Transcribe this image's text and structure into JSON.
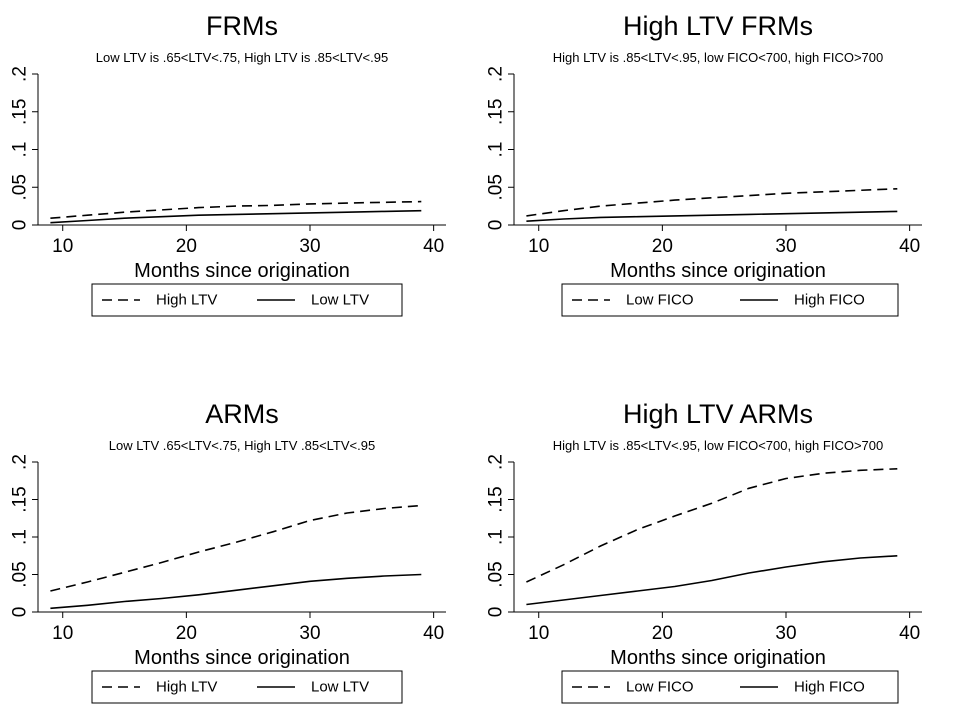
{
  "chart_data": [
    {
      "type": "line",
      "title": "FRMs",
      "subtitle": "Low LTV is .65<LTV<.75, High LTV is .85<LTV<.95",
      "xlabel": "Months since origination",
      "ylabel": "",
      "xlim": [
        8,
        41
      ],
      "ylim": [
        0,
        0.2
      ],
      "xticks": [
        10,
        20,
        30,
        40
      ],
      "xtick_labels": [
        "10",
        "20",
        "30",
        "40"
      ],
      "yticks": [
        0,
        0.05,
        0.1,
        0.15,
        0.2
      ],
      "ytick_labels": [
        "0",
        ".05",
        ".1",
        ".15",
        ".2"
      ],
      "grid": false,
      "legend_position": "bottom",
      "x": [
        9,
        12,
        15,
        18,
        21,
        24,
        27,
        30,
        33,
        36,
        39
      ],
      "series": [
        {
          "name": "High LTV",
          "style": "dashed",
          "values": [
            0.009,
            0.013,
            0.017,
            0.02,
            0.023,
            0.025,
            0.026,
            0.028,
            0.029,
            0.03,
            0.031
          ]
        },
        {
          "name": "Low LTV",
          "style": "solid",
          "values": [
            0.003,
            0.006,
            0.009,
            0.011,
            0.013,
            0.014,
            0.015,
            0.016,
            0.017,
            0.018,
            0.019
          ]
        }
      ]
    },
    {
      "type": "line",
      "title": "High LTV FRMs",
      "subtitle": "High LTV is .85<LTV<.95, low FICO<700, high FICO>700",
      "xlabel": "Months since origination",
      "ylabel": "",
      "xlim": [
        8,
        41
      ],
      "ylim": [
        0,
        0.2
      ],
      "xticks": [
        10,
        20,
        30,
        40
      ],
      "xtick_labels": [
        "10",
        "20",
        "30",
        "40"
      ],
      "yticks": [
        0,
        0.05,
        0.1,
        0.15,
        0.2
      ],
      "ytick_labels": [
        "0",
        ".05",
        ".1",
        ".15",
        ".2"
      ],
      "grid": false,
      "legend_position": "bottom",
      "x": [
        9,
        12,
        15,
        18,
        21,
        24,
        27,
        30,
        33,
        36,
        39
      ],
      "series": [
        {
          "name": "Low FICO",
          "style": "dashed",
          "values": [
            0.012,
            0.019,
            0.025,
            0.029,
            0.033,
            0.036,
            0.039,
            0.042,
            0.044,
            0.046,
            0.048
          ]
        },
        {
          "name": "High FICO",
          "style": "solid",
          "values": [
            0.005,
            0.008,
            0.01,
            0.011,
            0.012,
            0.013,
            0.014,
            0.015,
            0.016,
            0.017,
            0.018
          ]
        }
      ]
    },
    {
      "type": "line",
      "title": "ARMs",
      "subtitle": "Low LTV .65<LTV<.75, High LTV .85<LTV<.95",
      "xlabel": "Months since origination",
      "ylabel": "",
      "xlim": [
        8,
        41
      ],
      "ylim": [
        0,
        0.2
      ],
      "xticks": [
        10,
        20,
        30,
        40
      ],
      "xtick_labels": [
        "10",
        "20",
        "30",
        "40"
      ],
      "yticks": [
        0,
        0.05,
        0.1,
        0.15,
        0.2
      ],
      "ytick_labels": [
        "0",
        ".05",
        ".1",
        ".15",
        ".2"
      ],
      "grid": false,
      "legend_position": "bottom",
      "x": [
        9,
        12,
        15,
        18,
        21,
        24,
        27,
        30,
        33,
        36,
        39
      ],
      "series": [
        {
          "name": "High LTV",
          "style": "dashed",
          "values": [
            0.028,
            0.04,
            0.053,
            0.066,
            0.08,
            0.093,
            0.107,
            0.122,
            0.132,
            0.138,
            0.142
          ]
        },
        {
          "name": "Low LTV",
          "style": "solid",
          "values": [
            0.005,
            0.009,
            0.014,
            0.018,
            0.023,
            0.029,
            0.035,
            0.041,
            0.045,
            0.048,
            0.05
          ]
        }
      ]
    },
    {
      "type": "line",
      "title": "High LTV ARMs",
      "subtitle": "High LTV is .85<LTV<.95, low FICO<700, high FICO>700",
      "xlabel": "Months since origination",
      "ylabel": "",
      "xlim": [
        8,
        41
      ],
      "ylim": [
        0,
        0.2
      ],
      "xticks": [
        10,
        20,
        30,
        40
      ],
      "xtick_labels": [
        "10",
        "20",
        "30",
        "40"
      ],
      "yticks": [
        0,
        0.05,
        0.1,
        0.15,
        0.2
      ],
      "ytick_labels": [
        "0",
        ".05",
        ".1",
        ".15",
        ".2"
      ],
      "grid": false,
      "legend_position": "bottom",
      "x": [
        9,
        12,
        15,
        18,
        21,
        24,
        27,
        30,
        33,
        36,
        39
      ],
      "series": [
        {
          "name": "Low FICO",
          "style": "dashed",
          "values": [
            0.04,
            0.063,
            0.088,
            0.11,
            0.128,
            0.145,
            0.165,
            0.178,
            0.185,
            0.189,
            0.191
          ]
        },
        {
          "name": "High FICO",
          "style": "solid",
          "values": [
            0.01,
            0.016,
            0.022,
            0.028,
            0.034,
            0.042,
            0.052,
            0.06,
            0.067,
            0.072,
            0.075
          ]
        }
      ]
    }
  ]
}
